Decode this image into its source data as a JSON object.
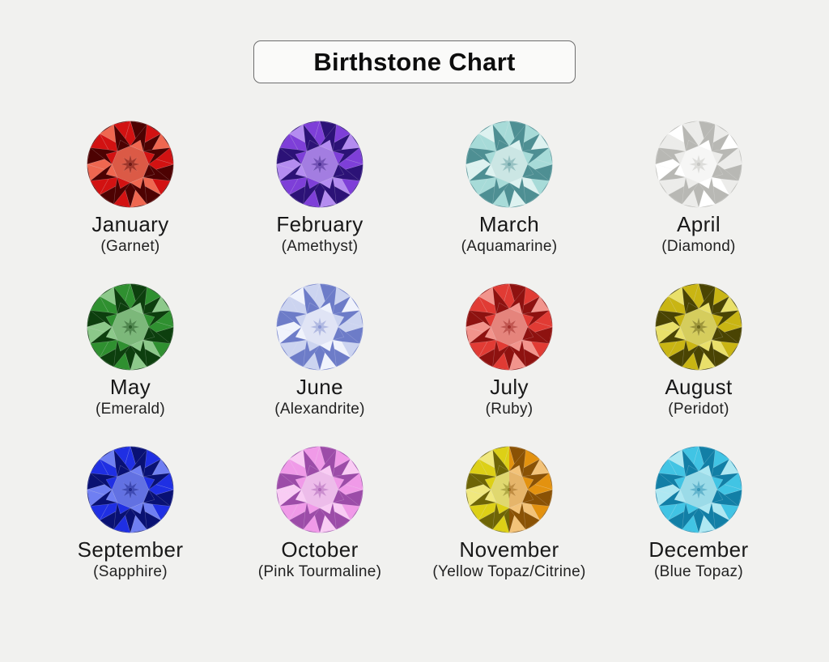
{
  "title": "Birthstone Chart",
  "page_background": "#f1f1ef",
  "months": [
    {
      "month": "January",
      "stone": "(Garnet)",
      "palette": {
        "base": "#d21212",
        "dark": "#4d0202",
        "light": "#ef6750"
      }
    },
    {
      "month": "February",
      "stone": "(Amethyst)",
      "palette": {
        "base": "#7e3fd8",
        "dark": "#2c1277",
        "light": "#b48cf0"
      }
    },
    {
      "month": "March",
      "stone": "(Aquamarine)",
      "palette": {
        "base": "#a7dbd8",
        "dark": "#4e8f93",
        "light": "#ddf2f0"
      }
    },
    {
      "month": "April",
      "stone": "(Diamond)",
      "palette": {
        "base": "#ececea",
        "dark": "#b8b8b4",
        "light": "#ffffff"
      }
    },
    {
      "month": "May",
      "stone": "(Emerald)",
      "palette": {
        "base": "#2f9030",
        "dark": "#0d3f0e",
        "light": "#8cc98a"
      }
    },
    {
      "month": "June",
      "stone": "(Alexandrite)",
      "palette": {
        "base": "#ccd4f0",
        "dark": "#6d7cc8",
        "light": "#f0f3fc"
      }
    },
    {
      "month": "July",
      "stone": "(Ruby)",
      "palette": {
        "base": "#e13b34",
        "dark": "#8e1210",
        "light": "#f2948c"
      }
    },
    {
      "month": "August",
      "stone": "(Peridot)",
      "palette": {
        "base": "#c9b513",
        "dark": "#4a4403",
        "light": "#e9e06a"
      }
    },
    {
      "month": "September",
      "stone": "(Sapphire)",
      "palette": {
        "base": "#1f2fe3",
        "dark": "#091173",
        "light": "#6f7ff2"
      }
    },
    {
      "month": "October",
      "stone": "(Pink Tourmaline)",
      "palette": {
        "base": "#f09ae8",
        "dark": "#9c4ca8",
        "light": "#f9ccf4"
      }
    },
    {
      "month": "November",
      "stone": "(Yellow Topaz/Citrine)",
      "palette": {
        "base": "#ddd016",
        "dark": "#6e6506",
        "light": "#f0e87e"
      },
      "palette2": {
        "base": "#e3920f",
        "dark": "#8a5205",
        "light": "#f3c379"
      }
    },
    {
      "month": "December",
      "stone": "(Blue Topaz)",
      "palette": {
        "base": "#41c4e4",
        "dark": "#127fa6",
        "light": "#aee8f2"
      }
    }
  ]
}
